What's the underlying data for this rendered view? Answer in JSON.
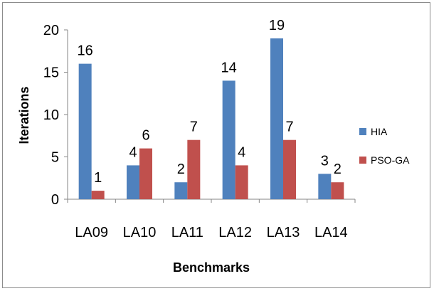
{
  "chart_data": {
    "type": "bar",
    "title": "",
    "xlabel": "Benchmarks",
    "ylabel": "Iterations",
    "categories": [
      "LA09",
      "LA10",
      "LA11",
      "LA12",
      "LA13",
      "LA14"
    ],
    "series": [
      {
        "name": "HIA",
        "values": [
          16,
          4,
          2,
          14,
          19,
          3
        ],
        "color": "#4f81bd"
      },
      {
        "name": "PSO-GA",
        "values": [
          1,
          6,
          7,
          4,
          7,
          2
        ],
        "color": "#c0504d"
      }
    ],
    "ylim": [
      0,
      20
    ],
    "yticks": [
      0,
      5,
      10,
      15,
      20
    ],
    "grid": false,
    "legend_position": "right"
  }
}
